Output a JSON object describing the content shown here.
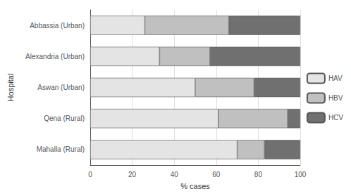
{
  "chart_data": {
    "type": "bar",
    "orientation": "horizontal",
    "stacked": true,
    "categories": [
      "Abbassia (Urban)",
      "Alexandria (Urban)",
      "Aswan (Urban)",
      "Qena (Rural)",
      "Mahalla (Rural)"
    ],
    "series": [
      {
        "name": "HAV",
        "color": "#e4e4e4",
        "values": [
          26,
          33,
          50,
          61,
          70
        ]
      },
      {
        "name": "HBV",
        "color": "#c0c0c0",
        "values": [
          40,
          24,
          28,
          33,
          13
        ]
      },
      {
        "name": "HCV",
        "color": "#707070",
        "values": [
          34,
          43,
          22,
          6,
          17
        ]
      }
    ],
    "xlabel": "% cases",
    "ylabel": "Hospital",
    "xlim": [
      0,
      100
    ],
    "xticks": [
      0,
      20,
      40,
      60,
      80,
      100
    ],
    "grid": true,
    "legend": "right"
  }
}
